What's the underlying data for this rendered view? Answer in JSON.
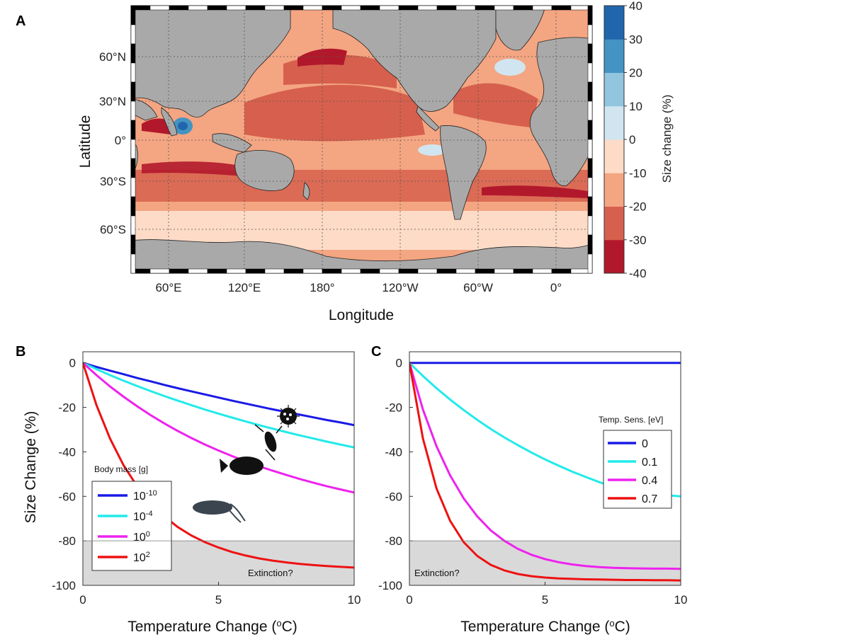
{
  "panel_labels": {
    "a": "A",
    "b": "B",
    "c": "C"
  },
  "colors": {
    "land": "#a9a9a9",
    "colorbar": [
      "#b2182b",
      "#d6604d",
      "#f4a582",
      "#fddbc7",
      "#d1e5f0",
      "#92c5de",
      "#4393c3",
      "#2166ac"
    ],
    "series_b": [
      "#1a1ae6",
      "#22eaea",
      "#ee22ee",
      "#ee1111"
    ],
    "series_c": [
      "#1a1ae6",
      "#22eaea",
      "#ee22ee",
      "#ee1111"
    ],
    "extinction_band": "#d9d9d9"
  },
  "chart_data": [
    {
      "type": "heatmap",
      "panel": "A",
      "xlabel": "Longitude",
      "ylabel": "Latitude",
      "x_ticks": [
        "60°E",
        "120°E",
        "180°",
        "120°W",
        "60°W",
        "0°"
      ],
      "y_ticks": [
        "60°N",
        "30°N",
        "0°",
        "30°S",
        "60°S"
      ],
      "colorbar": {
        "label": "Size change (%)",
        "ticks": [
          "40",
          "30",
          "20",
          "10",
          "0",
          "-10",
          "-20",
          "-30",
          "-40"
        ],
        "range": [
          -40,
          40
        ]
      }
    },
    {
      "type": "line",
      "panel": "B",
      "xlabel": "Temperature Change (",
      "xlabel_sup": "o",
      "xlabel_unit": "C)",
      "ylabel": "Size Change (%)",
      "xlim": [
        0,
        10
      ],
      "ylim": [
        -100,
        5
      ],
      "x_ticks": [
        "0",
        "5",
        "10"
      ],
      "y_ticks": [
        "0",
        "-20",
        "-40",
        "-60",
        "-80",
        "-100"
      ],
      "legend_title": "Body mass [g]",
      "annotation": "Extinction?",
      "extinction_threshold": -80,
      "x": [
        0,
        0.5,
        1,
        1.5,
        2,
        2.5,
        3,
        3.5,
        4,
        4.5,
        5,
        5.5,
        6,
        6.5,
        7,
        7.5,
        8,
        8.5,
        9,
        9.5,
        10
      ],
      "series": [
        {
          "name": "10",
          "sup": "-10",
          "values": [
            0,
            -1.8,
            -3.5,
            -5.1,
            -6.8,
            -8.3,
            -9.9,
            -11.4,
            -12.8,
            -14.2,
            -15.6,
            -17.0,
            -18.3,
            -19.6,
            -20.9,
            -22.1,
            -23.3,
            -24.5,
            -25.7,
            -26.8,
            -28.0
          ]
        },
        {
          "name": "10",
          "sup": "-4",
          "values": [
            0,
            -2.8,
            -5.5,
            -8.0,
            -10.4,
            -12.7,
            -14.9,
            -17.0,
            -19.0,
            -21.0,
            -22.8,
            -24.6,
            -26.3,
            -28.0,
            -29.6,
            -31.1,
            -32.6,
            -34.0,
            -35.4,
            -36.7,
            -38.0
          ]
        },
        {
          "name": "10",
          "sup": "0",
          "values": [
            0,
            -5.5,
            -10.6,
            -15.2,
            -19.5,
            -23.5,
            -27.2,
            -30.6,
            -33.8,
            -36.7,
            -39.4,
            -41.9,
            -44.3,
            -46.5,
            -48.5,
            -50.4,
            -52.2,
            -53.9,
            -55.5,
            -56.9,
            -58.3
          ]
        },
        {
          "name": "10",
          "sup": "2",
          "values": [
            0,
            -19.0,
            -34.0,
            -46.0,
            -55.5,
            -63.0,
            -69.0,
            -73.8,
            -77.6,
            -80.6,
            -83.0,
            -85.0,
            -86.6,
            -87.9,
            -88.9,
            -89.7,
            -90.4,
            -90.9,
            -91.3,
            -91.7,
            -92.0
          ]
        }
      ]
    },
    {
      "type": "line",
      "panel": "C",
      "xlabel": "Temperature Change (",
      "xlabel_sup": "o",
      "xlabel_unit": "C)",
      "xlim": [
        0,
        10
      ],
      "ylim": [
        -100,
        5
      ],
      "x_ticks": [
        "0",
        "5",
        "10"
      ],
      "y_ticks": [
        "0",
        "-20",
        "-40",
        "-60",
        "-80",
        "-100"
      ],
      "legend_title": "Temp. Sens. [eV]",
      "annotation": "Extinction?",
      "extinction_threshold": -80,
      "x": [
        0,
        0.5,
        1,
        1.5,
        2,
        2.5,
        3,
        3.5,
        4,
        4.5,
        5,
        5.5,
        6,
        6.5,
        7,
        7.5,
        8,
        8.5,
        9,
        9.5,
        10
      ],
      "series": [
        {
          "name": "0",
          "values": [
            0,
            0,
            0,
            0,
            0,
            0,
            0,
            0,
            0,
            0,
            0,
            0,
            0,
            0,
            0,
            0,
            0,
            0,
            0,
            0,
            0
          ]
        },
        {
          "name": "0.1",
          "values": [
            0,
            -5.9,
            -11.4,
            -16.5,
            -21.2,
            -25.6,
            -29.7,
            -33.5,
            -37.0,
            -40.3,
            -43.4,
            -46.2,
            -48.9,
            -51.3,
            -53.6,
            -55.7,
            -57.6,
            -58.4,
            -59.0,
            -59.5,
            -60.0
          ]
        },
        {
          "name": "0.4",
          "values": [
            0,
            -21.0,
            -37.5,
            -50.6,
            -60.9,
            -69.0,
            -75.3,
            -80.0,
            -83.6,
            -86.3,
            -88.2,
            -89.6,
            -90.6,
            -91.3,
            -91.8,
            -92.1,
            -92.3,
            -92.4,
            -92.5,
            -92.5,
            -92.6
          ]
        },
        {
          "name": "0.7",
          "values": [
            0,
            -34.0,
            -56.5,
            -71.0,
            -80.6,
            -86.8,
            -90.8,
            -93.3,
            -94.9,
            -95.9,
            -96.5,
            -96.9,
            -97.1,
            -97.3,
            -97.4,
            -97.5,
            -97.6,
            -97.6,
            -97.7,
            -97.7,
            -97.8
          ]
        }
      ]
    }
  ]
}
